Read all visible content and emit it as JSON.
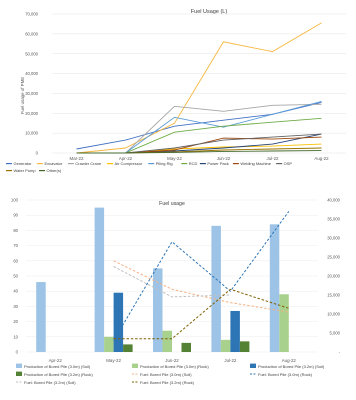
{
  "chart_data": [
    {
      "type": "line",
      "title": "Fuel Usage (L)",
      "xlabel": "",
      "ylabel": "Fuel usage of PME",
      "categories": [
        "Mar-22",
        "Apr-22",
        "May-22",
        "Jun-22",
        "Jul-22",
        "Aug-22"
      ],
      "ylim": [
        0,
        70000
      ],
      "yticks": [
        0,
        10000,
        20000,
        30000,
        40000,
        50000,
        60000,
        70000
      ],
      "grid": true,
      "legend": "bottom",
      "series": [
        {
          "name": "Generator",
          "color": "#4472c4",
          "values": [
            2000,
            6500,
            13500,
            16500,
            19500,
            25500
          ]
        },
        {
          "name": "Excavator",
          "color": "#f5b73e",
          "values": [
            0,
            2500,
            15000,
            56000,
            51000,
            65500
          ]
        },
        {
          "name": "Crawler Crane",
          "color": "#a5a5a5",
          "values": [
            0,
            0,
            23500,
            21000,
            24000,
            24500
          ]
        },
        {
          "name": "Air Compressor",
          "color": "#ffc000",
          "values": [
            0,
            0,
            2000,
            3000,
            3500,
            4500
          ]
        },
        {
          "name": "Piling Rig",
          "color": "#5b9bd5",
          "values": [
            0,
            0,
            18000,
            13000,
            19500,
            26000
          ]
        },
        {
          "name": "RCD",
          "color": "#70ad47",
          "values": [
            0,
            0,
            10500,
            13500,
            15500,
            17500
          ]
        },
        {
          "name": "Power Pack",
          "color": "#264478",
          "values": [
            0,
            0,
            1000,
            2500,
            4500,
            9500
          ]
        },
        {
          "name": "Welding Machine",
          "color": "#9e480e",
          "values": [
            0,
            0,
            1500,
            7500,
            7000,
            8000
          ]
        },
        {
          "name": "OSP",
          "color": "#636363",
          "values": [
            0,
            0,
            2500,
            6500,
            8000,
            9500
          ]
        },
        {
          "name": "Water Pump",
          "color": "#997300",
          "values": [
            0,
            0,
            500,
            1500,
            2000,
            2500
          ]
        },
        {
          "name": "Other(s)",
          "color": "#43682b",
          "values": [
            0,
            0,
            300,
            800,
            1000,
            1200
          ]
        }
      ]
    },
    {
      "type": "bar",
      "title": "Fuel usage",
      "categories": [
        "Apr-22",
        "May-22",
        "Jun-22",
        "Jul-22",
        "Aug-22"
      ],
      "ylim": [
        0,
        100
      ],
      "yticks": [
        0,
        10,
        20,
        30,
        40,
        50,
        60,
        70,
        80,
        90,
        100
      ],
      "y2lim": [
        0,
        40000
      ],
      "y2ticks": [
        "-",
        "5,000",
        "10,000",
        "15,000",
        "20,000",
        "25,000",
        "30,000",
        "35,000",
        "40,000"
      ],
      "legend": "bottom",
      "bar_series": [
        {
          "name": "Production of Bored Pile (3.0m) (Soil)",
          "color": "#9dc3e6",
          "values": [
            46,
            95,
            55,
            83,
            84
          ]
        },
        {
          "name": "Production of Bored Pile (3.0m) (Rock)",
          "color": "#a9d18e",
          "values": [
            0,
            10,
            14,
            8,
            38
          ]
        },
        {
          "name": "Production of Bored Pile (3.2m) (Soil)",
          "color": "#2e75b6",
          "values": [
            0,
            39,
            0,
            27,
            0
          ]
        },
        {
          "name": "Production of Bored Pile (3.2m) (Rock)",
          "color": "#548235",
          "values": [
            0,
            5,
            6,
            7,
            0
          ]
        }
      ],
      "line_series": [
        {
          "name": "Fuel: Bored Pile (3.0m) (Soil)",
          "color": "#f4b183",
          "values": [
            null,
            24000,
            16500,
            13000,
            10500
          ]
        },
        {
          "name": "Fuel: Bored Pile (3.0m) (Rock)",
          "color": "#2e75b6",
          "values": [
            null,
            3000,
            29000,
            16000,
            37000
          ]
        },
        {
          "name": "Fuel: Bored Pile (3.2m) (Soil)",
          "color": "#bfbfbf",
          "values": [
            null,
            22500,
            14500,
            15000,
            null
          ]
        },
        {
          "name": "Fuel: Bored Pile (3.2m) (Rock)",
          "color": "#7f6000",
          "values": [
            null,
            3500,
            3500,
            16500,
            11500
          ]
        }
      ]
    }
  ]
}
